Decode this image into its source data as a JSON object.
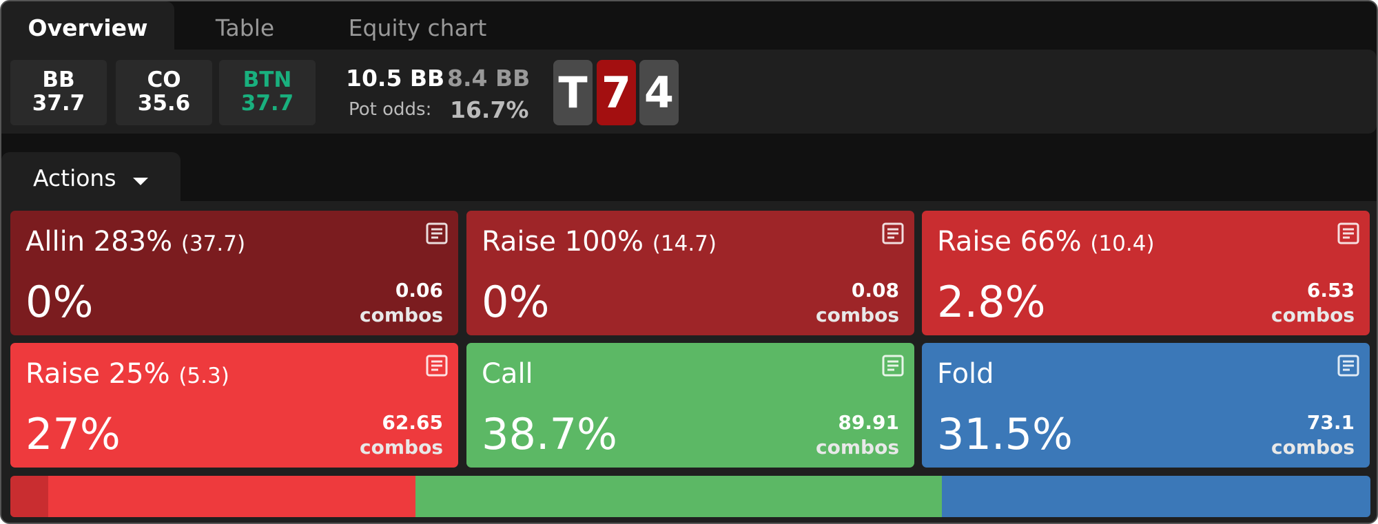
{
  "tabs": [
    "Overview",
    "Table",
    "Equity chart"
  ],
  "players": [
    {
      "position": "BB",
      "stack": "37.7"
    },
    {
      "position": "CO",
      "stack": "35.6"
    },
    {
      "position": "BTN",
      "stack": "37.7"
    }
  ],
  "pot": "10.5 BB",
  "to_call": "8.4 BB",
  "pot_odds_label": "Pot odds:",
  "pot_odds": "16.7%",
  "board": [
    "T",
    "7",
    "4"
  ],
  "actions_label": "Actions",
  "combos_unit": "combos",
  "actions": [
    {
      "name": "Allin 283%",
      "size": "(37.7)",
      "frequency": 0,
      "frequency_label": "0%",
      "combos": 0.06,
      "color": "#7b1c1f"
    },
    {
      "name": "Raise 100%",
      "size": "(14.7)",
      "frequency": 0,
      "frequency_label": "0%",
      "combos": 0.08,
      "color": "#9e2528"
    },
    {
      "name": "Raise 66%",
      "size": "(10.4)",
      "frequency": 2.8,
      "frequency_label": "2.8%",
      "combos": 6.53,
      "color": "#c92d30"
    },
    {
      "name": "Raise 25%",
      "size": "(5.3)",
      "frequency": 27,
      "frequency_label": "27%",
      "combos": 62.65,
      "color": "#ee3a3d"
    },
    {
      "name": "Call",
      "frequency": 38.7,
      "frequency_label": "38.7%",
      "combos": 89.91,
      "color": "#5cb865"
    },
    {
      "name": "Fold",
      "frequency": 31.5,
      "frequency_label": "31.5%",
      "combos": 73.1,
      "color": "#3b78b8"
    }
  ]
}
